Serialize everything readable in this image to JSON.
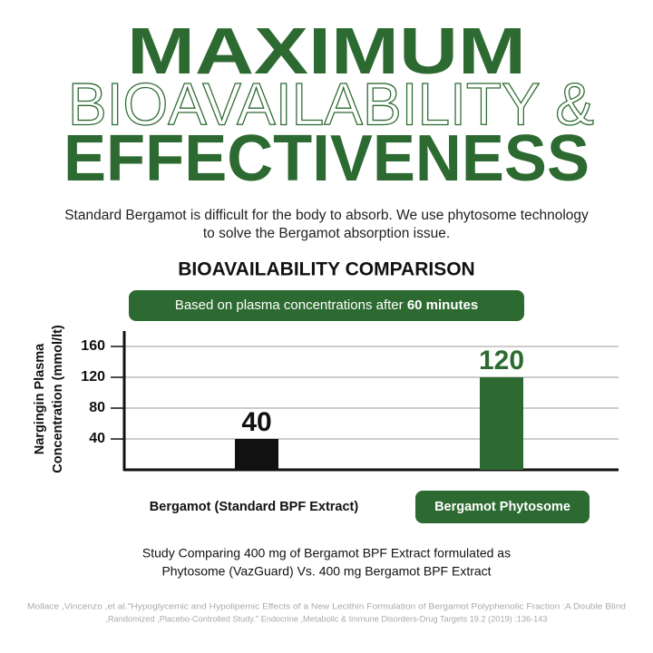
{
  "header": {
    "line1": "MAXIMUM",
    "line2": "BIOAVAILABILITY &",
    "line3": "EFFECTIVENESS",
    "description": [
      "Standard Bergamot is difficult for the body to absorb. We use phytosome technology",
      "to solve the Bergamot absorption issue."
    ]
  },
  "chart_data": {
    "type": "bar",
    "title": "BIOAVAILABILITY COMPARISON",
    "subtitle": "Based on plasma concentrations after",
    "subtitle_emphasis": "60 minutes",
    "y_label": [
      "Nargingin Plasma",
      "Concentration (mmol/lt)"
    ],
    "categories": [
      "Bergamot (Standard BPF Extract)",
      "Bergamot Phytosome"
    ],
    "values": [
      40,
      120
    ],
    "colors": [
      "#111111",
      "#2d6a31"
    ],
    "ylim": [
      0,
      180
    ],
    "yticks": [
      40,
      80,
      120,
      160
    ],
    "grid": true
  },
  "footer": {
    "study": [
      "Study Comparing 400 mg of Bergamot BPF Extract formulated as",
      "Phytosome (VazGuard) Vs. 400 mg Bergamot BPF Extract"
    ],
    "citation": [
      "Mollace ,Vincenzo ,et al.\"Hypoglycemic and Hypolipemic Effects of a New Lecithin Formulation of Bergamot Polyphenolic  Fraction  :A Double Blind",
      ",Randomized ,Placebo-Controlled Study.\" Endocrine ,Metabolic & Immune Disorders-Drug Targets 19.2 (2019) :136-143"
    ]
  }
}
